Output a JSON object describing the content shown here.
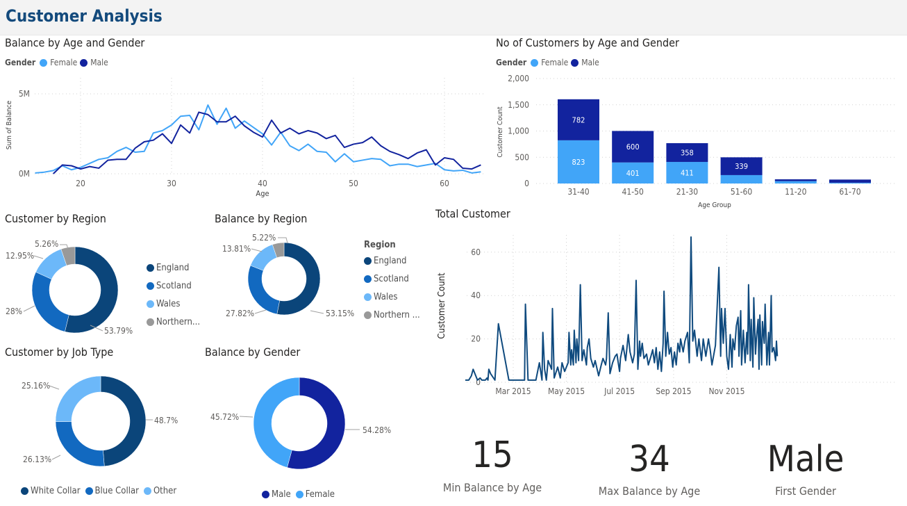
{
  "header": {
    "title": "Customer Analysis"
  },
  "colors": {
    "female": "#41a5f8",
    "male": "#12239e",
    "england": "#0b457a",
    "scotland": "#1269c0",
    "wales": "#6cb8f9",
    "northern": "#999999",
    "timeseries": "#0f4a7e"
  },
  "chart_data": [
    {
      "id": "balance_age_gender",
      "type": "line",
      "title": "Balance by Age and Gender",
      "legend_title": "Gender",
      "legend_placement": "top-left",
      "xlabel": "Age",
      "ylabel": "Sum of Balance",
      "x_ticks": [
        20,
        30,
        40,
        50,
        60
      ],
      "y_ticks": [
        {
          "v": 0,
          "label": "0M"
        },
        {
          "v": 5,
          "label": "5M"
        }
      ],
      "grid": true,
      "series": [
        {
          "name": "Female",
          "color": "#41a5f8",
          "x_start": 15,
          "values": [
            0.05,
            0.1,
            0.2,
            0.5,
            0.25,
            0.4,
            0.65,
            0.9,
            1.0,
            1.4,
            1.65,
            1.35,
            1.4,
            2.55,
            2.7,
            3.05,
            3.6,
            3.65,
            2.75,
            4.3,
            3.1,
            4.1,
            2.85,
            3.3,
            2.9,
            2.5,
            1.8,
            2.6,
            1.75,
            1.45,
            1.85,
            1.4,
            1.35,
            0.75,
            1.25,
            0.75,
            0.85,
            0.95,
            0.9,
            0.5,
            0.6,
            0.6,
            0.45,
            0.55,
            0.65,
            0.25,
            0.18,
            0.22,
            0.05,
            0.12
          ]
        },
        {
          "name": "Male",
          "color": "#12239e",
          "x_start": 17,
          "values": [
            0,
            0.55,
            0.5,
            0.3,
            0.45,
            0.35,
            0.85,
            0.9,
            0.9,
            1.6,
            2.0,
            2.1,
            2.5,
            1.9,
            3.05,
            2.55,
            3.85,
            3.7,
            3.25,
            3.25,
            3.6,
            3.0,
            2.6,
            2.3,
            3.35,
            2.55,
            2.85,
            2.5,
            2.7,
            2.55,
            2.2,
            2.4,
            1.65,
            1.85,
            1.95,
            2.3,
            1.75,
            1.4,
            1.2,
            0.95,
            1.3,
            1.5,
            0.55,
            1.0,
            0.9,
            0.35,
            0.3,
            0.55
          ]
        }
      ]
    },
    {
      "id": "customers_age_gender",
      "type": "bar",
      "stacked": true,
      "title": "No of Customers by Age and Gender",
      "legend_title": "Gender",
      "legend_placement": "top-left",
      "xlabel": "Age Group",
      "ylabel": "Customer Count",
      "ylim": [
        0,
        2000
      ],
      "y_ticks": [
        "0",
        "500",
        "1,000",
        "1,500",
        "2,000"
      ],
      "categories": [
        "31-40",
        "41-50",
        "21-30",
        "51-60",
        "11-20",
        "61-70"
      ],
      "series": [
        {
          "name": "Female",
          "color": "#41a5f8",
          "values": [
            823,
            401,
            411,
            160,
            45,
            15
          ],
          "labels": [
            "823",
            "401",
            "411",
            "",
            "",
            ""
          ]
        },
        {
          "name": "Male",
          "color": "#12239e",
          "values": [
            782,
            600,
            358,
            339,
            35,
            60
          ],
          "labels": [
            "782",
            "600",
            "358",
            "339",
            "",
            ""
          ]
        }
      ]
    },
    {
      "id": "customer_region",
      "type": "pie",
      "donut": true,
      "title": "Customer by Region",
      "legend_placement": "right",
      "categories": [
        "England",
        "Scotland",
        "Wales",
        "Northern..."
      ],
      "values": [
        53.79,
        28,
        12.95,
        5.26
      ],
      "labels": [
        "53.79%",
        "28%",
        "12.95%",
        "5.26%"
      ]
    },
    {
      "id": "balance_region",
      "type": "pie",
      "donut": true,
      "title": "Balance by Region",
      "legend_title": "Region",
      "legend_placement": "right",
      "categories": [
        "England",
        "Scotland",
        "Wales",
        "Northern ..."
      ],
      "values": [
        53.15,
        27.82,
        13.81,
        5.22
      ],
      "labels": [
        "53.15%",
        "27.82%",
        "13.81%",
        "5.22%"
      ]
    },
    {
      "id": "customer_job",
      "type": "pie",
      "donut": true,
      "title": "Customer by Job Type",
      "legend_placement": "bottom",
      "categories": [
        "White Collar",
        "Blue Collar",
        "Other"
      ],
      "values": [
        48.7,
        26.13,
        25.16
      ],
      "labels": [
        "48.7%",
        "26.13%",
        "25.16%"
      ]
    },
    {
      "id": "balance_gender",
      "type": "pie",
      "donut": true,
      "title": "Balance by Gender",
      "legend_placement": "bottom",
      "categories": [
        "Male",
        "Female"
      ],
      "values": [
        54.28,
        45.72
      ],
      "labels": [
        "54.28%",
        "45.72%"
      ]
    },
    {
      "id": "total_customer",
      "type": "line",
      "title": "Total Customer",
      "ylabel": "Customer Count",
      "y_ticks": [
        0,
        20,
        40,
        60
      ],
      "x_ticks": [
        {
          "date": "2015-03-01",
          "label": "Mar 2015"
        },
        {
          "date": "2015-05-01",
          "label": "May 2015"
        },
        {
          "date": "2015-07-01",
          "label": "Jul 2015"
        },
        {
          "date": "2015-09-01",
          "label": "Sep 2015"
        },
        {
          "date": "2015-11-01",
          "label": "Nov 2015"
        }
      ],
      "grid": true,
      "points": [
        [
          "2015-01-05",
          1
        ],
        [
          "2015-01-09",
          1
        ],
        [
          "2015-01-12",
          3
        ],
        [
          "2015-01-14",
          6
        ],
        [
          "2015-01-17",
          3
        ],
        [
          "2015-01-19",
          1
        ],
        [
          "2015-01-22",
          2
        ],
        [
          "2015-01-24",
          1
        ],
        [
          "2015-01-28",
          1
        ],
        [
          "2015-01-30",
          2
        ],
        [
          "2015-01-31",
          1
        ],
        [
          "2015-02-01",
          6
        ],
        [
          "2015-02-03",
          4
        ],
        [
          "2015-02-08",
          1
        ],
        [
          "2015-02-12",
          27
        ],
        [
          "2015-02-24",
          1
        ],
        [
          "2015-03-14",
          1
        ],
        [
          "2015-03-15",
          36
        ],
        [
          "2015-03-18",
          1
        ],
        [
          "2015-03-27",
          1
        ],
        [
          "2015-03-31",
          9
        ],
        [
          "2015-04-03",
          1
        ],
        [
          "2015-04-04",
          23
        ],
        [
          "2015-04-06",
          6
        ],
        [
          "2015-04-08",
          1
        ],
        [
          "2015-04-10",
          10
        ],
        [
          "2015-04-14",
          6
        ],
        [
          "2015-04-15",
          34
        ],
        [
          "2015-04-17",
          2
        ],
        [
          "2015-04-21",
          7
        ],
        [
          "2015-04-24",
          2
        ],
        [
          "2015-04-26",
          9
        ],
        [
          "2015-04-29",
          5
        ],
        [
          "2015-05-03",
          9
        ],
        [
          "2015-05-04",
          23
        ],
        [
          "2015-05-06",
          8
        ],
        [
          "2015-05-07",
          15
        ],
        [
          "2015-05-09",
          8
        ],
        [
          "2015-05-10",
          24
        ],
        [
          "2015-05-12",
          9
        ],
        [
          "2015-05-13",
          20
        ],
        [
          "2015-05-15",
          10
        ],
        [
          "2015-05-17",
          45
        ],
        [
          "2015-05-19",
          10
        ],
        [
          "2015-05-21",
          15
        ],
        [
          "2015-05-24",
          8
        ],
        [
          "2015-05-25",
          16
        ],
        [
          "2015-05-27",
          20
        ],
        [
          "2015-05-29",
          11
        ],
        [
          "2015-06-01",
          7
        ],
        [
          "2015-06-03",
          10
        ],
        [
          "2015-06-07",
          3
        ],
        [
          "2015-06-10",
          8
        ],
        [
          "2015-06-12",
          11
        ],
        [
          "2015-06-15",
          8
        ],
        [
          "2015-06-16",
          11
        ],
        [
          "2015-06-18",
          32
        ],
        [
          "2015-06-20",
          4
        ],
        [
          "2015-06-23",
          9
        ],
        [
          "2015-06-26",
          12
        ],
        [
          "2015-06-28",
          13
        ],
        [
          "2015-07-01",
          5
        ],
        [
          "2015-07-02",
          11
        ],
        [
          "2015-07-05",
          17
        ],
        [
          "2015-07-08",
          10
        ],
        [
          "2015-07-11",
          22
        ],
        [
          "2015-07-13",
          14
        ],
        [
          "2015-07-16",
          9
        ],
        [
          "2015-07-18",
          13
        ],
        [
          "2015-07-20",
          47
        ],
        [
          "2015-07-22",
          6
        ],
        [
          "2015-07-24",
          19
        ],
        [
          "2015-07-25",
          12
        ],
        [
          "2015-07-27",
          18
        ],
        [
          "2015-07-29",
          11
        ],
        [
          "2015-08-01",
          13
        ],
        [
          "2015-08-03",
          8
        ],
        [
          "2015-08-06",
          12
        ],
        [
          "2015-08-08",
          15
        ],
        [
          "2015-08-10",
          9
        ],
        [
          "2015-08-12",
          16
        ],
        [
          "2015-08-14",
          6
        ],
        [
          "2015-08-16",
          14
        ],
        [
          "2015-08-18",
          5
        ],
        [
          "2015-08-20",
          18
        ],
        [
          "2015-08-21",
          42
        ],
        [
          "2015-08-23",
          12
        ],
        [
          "2015-08-25",
          23
        ],
        [
          "2015-08-27",
          13
        ],
        [
          "2015-08-29",
          16
        ],
        [
          "2015-08-31",
          7
        ],
        [
          "2015-09-02",
          14
        ],
        [
          "2015-09-04",
          8
        ],
        [
          "2015-09-06",
          18
        ],
        [
          "2015-09-08",
          14
        ],
        [
          "2015-09-09",
          20
        ],
        [
          "2015-09-12",
          14
        ],
        [
          "2015-09-14",
          19
        ],
        [
          "2015-09-17",
          23
        ],
        [
          "2015-09-19",
          9
        ],
        [
          "2015-09-21",
          67
        ],
        [
          "2015-09-23",
          19
        ],
        [
          "2015-09-25",
          24
        ],
        [
          "2015-09-28",
          12
        ],
        [
          "2015-09-30",
          20
        ],
        [
          "2015-10-03",
          10
        ],
        [
          "2015-10-05",
          20
        ],
        [
          "2015-10-08",
          12
        ],
        [
          "2015-10-11",
          20
        ],
        [
          "2015-10-13",
          15
        ],
        [
          "2015-10-15",
          8
        ],
        [
          "2015-10-19",
          17
        ],
        [
          "2015-10-23",
          53
        ],
        [
          "2015-10-25",
          12
        ],
        [
          "2015-10-26",
          34
        ],
        [
          "2015-10-28",
          18
        ],
        [
          "2015-10-30",
          34
        ],
        [
          "2015-11-01",
          12
        ],
        [
          "2015-11-03",
          6
        ],
        [
          "2015-11-05",
          22
        ],
        [
          "2015-11-07",
          7
        ],
        [
          "2015-11-08",
          20
        ],
        [
          "2015-11-10",
          15
        ],
        [
          "2015-11-12",
          26
        ],
        [
          "2015-11-14",
          30
        ],
        [
          "2015-11-15",
          12
        ],
        [
          "2015-11-17",
          33
        ],
        [
          "2015-11-18",
          8
        ],
        [
          "2015-11-20",
          24
        ],
        [
          "2015-11-22",
          9
        ],
        [
          "2015-11-24",
          23
        ],
        [
          "2015-11-25",
          13
        ],
        [
          "2015-11-26",
          45
        ],
        [
          "2015-11-28",
          10
        ],
        [
          "2015-11-29",
          29
        ],
        [
          "2015-12-01",
          7
        ],
        [
          "2015-12-02",
          39
        ],
        [
          "2015-12-04",
          13
        ],
        [
          "2015-12-05",
          20
        ],
        [
          "2015-12-07",
          29
        ],
        [
          "2015-12-08",
          6
        ],
        [
          "2015-12-09",
          31
        ],
        [
          "2015-12-11",
          8
        ],
        [
          "2015-12-12",
          28
        ],
        [
          "2015-12-14",
          18
        ],
        [
          "2015-12-15",
          36
        ],
        [
          "2015-12-17",
          8
        ],
        [
          "2015-12-19",
          23
        ],
        [
          "2015-12-20",
          8
        ],
        [
          "2015-12-22",
          40
        ],
        [
          "2015-12-23",
          14
        ],
        [
          "2015-12-25",
          16
        ],
        [
          "2015-12-27",
          10
        ],
        [
          "2015-12-28",
          19
        ],
        [
          "2015-12-29",
          12
        ]
      ]
    }
  ],
  "cards": [
    {
      "value": "15",
      "label": "Min Balance by Age"
    },
    {
      "value": "34",
      "label": "Max Balance by Age"
    },
    {
      "value": "Male",
      "label": "First Gender"
    }
  ]
}
